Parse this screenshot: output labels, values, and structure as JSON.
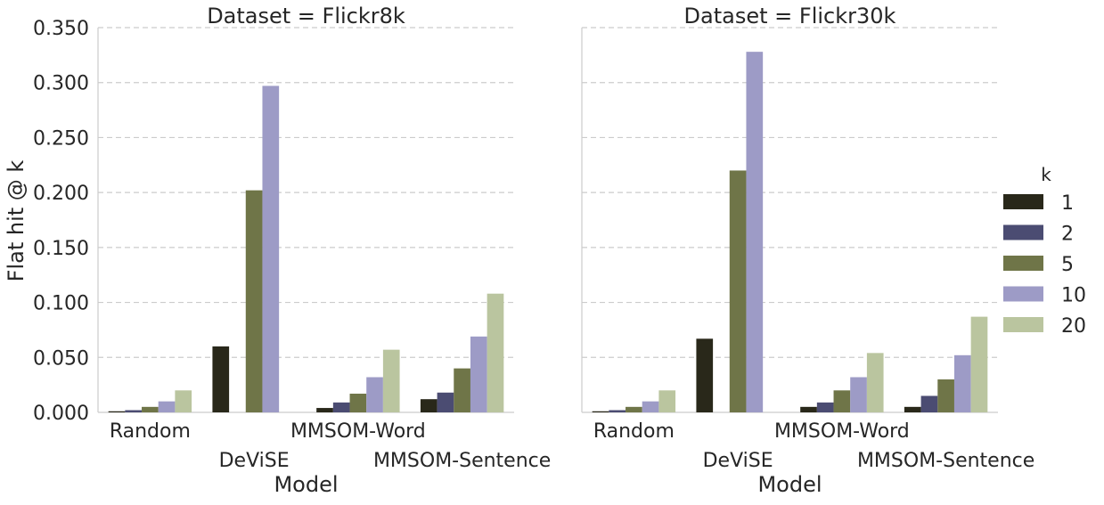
{
  "chart_data": {
    "type": "bar",
    "ylabel": "Flat hit @ k",
    "xlabel": "Model",
    "ylim": [
      0,
      0.35
    ],
    "yticks": [
      "0.000",
      "0.050",
      "0.100",
      "0.150",
      "0.200",
      "0.250",
      "0.300",
      "0.350"
    ],
    "grid": true,
    "legend": {
      "title": "k",
      "placement": "right",
      "entries": [
        "1",
        "2",
        "5",
        "10",
        "20"
      ],
      "colors": [
        "#29281a",
        "#4b4c72",
        "#6f7548",
        "#9d9bc6",
        "#bac59f"
      ]
    },
    "categories": [
      "Random",
      "DeViSE",
      "MMSOM-Word",
      "MMSOM-Sentence"
    ],
    "panels": [
      {
        "title": "Dataset = Flickr8k",
        "series": [
          {
            "name": "1",
            "values": [
              0.001,
              0.06,
              0.004,
              0.012
            ]
          },
          {
            "name": "2",
            "values": [
              0.002,
              0.0,
              0.009,
              0.018
            ]
          },
          {
            "name": "5",
            "values": [
              0.005,
              0.202,
              0.017,
              0.04
            ]
          },
          {
            "name": "10",
            "values": [
              0.01,
              0.297,
              0.032,
              0.069
            ]
          },
          {
            "name": "20",
            "values": [
              0.02,
              0.0,
              0.057,
              0.108
            ]
          }
        ]
      },
      {
        "title": "Dataset = Flickr30k",
        "series": [
          {
            "name": "1",
            "values": [
              0.001,
              0.067,
              0.005,
              0.005
            ]
          },
          {
            "name": "2",
            "values": [
              0.002,
              0.0,
              0.009,
              0.015
            ]
          },
          {
            "name": "5",
            "values": [
              0.005,
              0.22,
              0.02,
              0.03
            ]
          },
          {
            "name": "10",
            "values": [
              0.01,
              0.328,
              0.032,
              0.052
            ]
          },
          {
            "name": "20",
            "values": [
              0.02,
              0.0,
              0.054,
              0.087
            ]
          }
        ]
      }
    ]
  }
}
